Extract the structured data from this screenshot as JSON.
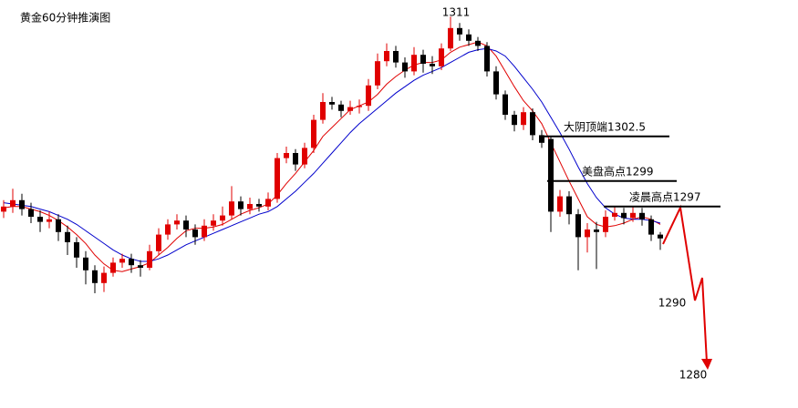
{
  "chart_data": {
    "type": "candlestick",
    "title": "黄金60分钟推演图",
    "ylim": [
      1281.2,
      1313.2
    ],
    "up_color": "#e00000",
    "down_color": "#000000",
    "open": [
      1296.6,
      1297.0,
      1297.5,
      1296.8,
      1296.2,
      1295.8,
      1296.0,
      1295.0,
      1294.2,
      1293.0,
      1292.0,
      1291.0,
      1291.8,
      1292.6,
      1292.9,
      1292.4,
      1292.2,
      1293.5,
      1294.8,
      1295.6,
      1295.9,
      1295.2,
      1294.6,
      1295.5,
      1295.9,
      1296.3,
      1297.4,
      1296.8,
      1297.2,
      1297.0,
      1297.6,
      1300.8,
      1301.2,
      1300.3,
      1301.6,
      1303.8,
      1305.2,
      1305.0,
      1304.5,
      1304.8,
      1304.9,
      1306.5,
      1308.4,
      1309.2,
      1308.3,
      1307.6,
      1308.9,
      1308.2,
      1308.0,
      1309.4,
      1311.0,
      1310.5,
      1310.0,
      1309.6,
      1307.6,
      1305.8,
      1304.2,
      1303.4,
      1304.4,
      1302.6,
      1302.3,
      1296.6,
      1297.8,
      1296.4,
      1294.6,
      1295.2,
      1295.0,
      1296.2,
      1296.5,
      1296.1,
      1296.5,
      1296.0,
      1294.8
    ],
    "high": [
      1297.5,
      1298.4,
      1298.0,
      1297.3,
      1296.7,
      1296.6,
      1296.4,
      1295.5,
      1294.6,
      1293.5,
      1292.4,
      1292.3,
      1293.0,
      1293.3,
      1293.3,
      1292.8,
      1294.0,
      1295.3,
      1296.0,
      1296.4,
      1296.3,
      1295.6,
      1296.0,
      1296.4,
      1297.0,
      1298.6,
      1297.8,
      1297.7,
      1297.6,
      1298.1,
      1301.2,
      1301.7,
      1301.5,
      1302.0,
      1304.2,
      1305.9,
      1305.6,
      1305.3,
      1305.3,
      1305.4,
      1307.0,
      1309.0,
      1309.8,
      1309.6,
      1308.7,
      1309.5,
      1309.3,
      1308.8,
      1309.8,
      1311.9,
      1311.4,
      1310.9,
      1310.3,
      1309.9,
      1308.0,
      1306.1,
      1304.5,
      1304.8,
      1304.7,
      1303.0,
      1302.5,
      1298.3,
      1298.2,
      1296.8,
      1295.7,
      1295.8,
      1296.7,
      1297.0,
      1296.9,
      1297.0,
      1296.9,
      1296.3,
      1295.0
    ],
    "low": [
      1296.1,
      1296.5,
      1296.3,
      1295.7,
      1295.0,
      1295.3,
      1294.3,
      1293.2,
      1292.2,
      1290.9,
      1290.2,
      1290.3,
      1291.5,
      1292.2,
      1291.8,
      1291.5,
      1292.0,
      1293.2,
      1294.4,
      1295.2,
      1294.6,
      1294.0,
      1294.3,
      1295.1,
      1295.5,
      1296.0,
      1296.3,
      1296.4,
      1296.6,
      1296.7,
      1297.3,
      1300.4,
      1299.8,
      1300.0,
      1301.2,
      1303.5,
      1304.6,
      1304.0,
      1304.2,
      1304.3,
      1304.5,
      1306.2,
      1308.0,
      1307.9,
      1307.1,
      1307.3,
      1307.5,
      1307.4,
      1307.7,
      1309.2,
      1310.0,
      1309.6,
      1309.2,
      1307.2,
      1305.4,
      1303.8,
      1302.9,
      1303.0,
      1302.2,
      1301.6,
      1295.0,
      1296.2,
      1295.6,
      1292.0,
      1293.4,
      1292.1,
      1294.6,
      1295.9,
      1295.6,
      1295.8,
      1295.5,
      1294.3,
      1293.6
    ],
    "close": [
      1297.0,
      1297.5,
      1296.8,
      1296.2,
      1295.8,
      1296.0,
      1295.0,
      1294.2,
      1293.0,
      1292.0,
      1291.0,
      1291.8,
      1292.6,
      1292.9,
      1292.4,
      1292.2,
      1293.5,
      1294.8,
      1295.6,
      1295.9,
      1295.2,
      1294.6,
      1295.5,
      1295.9,
      1296.3,
      1297.4,
      1296.8,
      1297.2,
      1297.0,
      1297.6,
      1300.8,
      1301.2,
      1300.3,
      1301.6,
      1303.8,
      1305.2,
      1305.0,
      1304.5,
      1304.8,
      1304.9,
      1306.5,
      1308.4,
      1309.2,
      1308.3,
      1307.6,
      1308.9,
      1308.2,
      1308.0,
      1309.4,
      1311.0,
      1310.5,
      1310.0,
      1309.6,
      1307.6,
      1305.8,
      1304.2,
      1303.4,
      1304.4,
      1302.6,
      1302.0,
      1296.6,
      1297.8,
      1296.4,
      1294.6,
      1295.2,
      1295.0,
      1296.2,
      1296.5,
      1296.1,
      1296.5,
      1296.0,
      1294.8,
      1294.5
    ],
    "lines": [
      {
        "color": "#e00000",
        "values": [
          1296.9,
          1297.0,
          1297.0,
          1296.8,
          1296.6,
          1296.3,
          1295.9,
          1295.4,
          1294.8,
          1294.1,
          1293.2,
          1292.5,
          1292.0,
          1291.9,
          1292.1,
          1292.3,
          1292.6,
          1293.2,
          1293.8,
          1294.5,
          1295.1,
          1295.3,
          1295.3,
          1295.4,
          1295.6,
          1296.0,
          1296.4,
          1296.7,
          1296.9,
          1297.2,
          1297.9,
          1298.8,
          1299.6,
          1300.5,
          1301.4,
          1302.5,
          1303.2,
          1303.9,
          1304.6,
          1304.9,
          1305.2,
          1305.8,
          1306.6,
          1307.2,
          1307.7,
          1308.1,
          1308.3,
          1308.3,
          1308.5,
          1309.1,
          1309.5,
          1309.7,
          1309.9,
          1309.6,
          1308.8,
          1307.6,
          1306.4,
          1305.3,
          1304.5,
          1303.5,
          1302.0,
          1300.5,
          1299.0,
          1297.6,
          1296.2,
          1295.6,
          1295.4,
          1295.5,
          1295.7,
          1296.0,
          1296.2,
          1296.0,
          1295.6
        ]
      },
      {
        "color": "#0000cc",
        "values": [
          1297.3,
          1297.2,
          1297.1,
          1297.0,
          1296.8,
          1296.6,
          1296.3,
          1296.0,
          1295.6,
          1295.1,
          1294.6,
          1294.1,
          1293.6,
          1293.2,
          1292.9,
          1292.7,
          1292.7,
          1292.9,
          1293.2,
          1293.6,
          1294.0,
          1294.3,
          1294.6,
          1294.9,
          1295.2,
          1295.5,
          1295.8,
          1296.1,
          1296.4,
          1296.6,
          1297.0,
          1297.6,
          1298.2,
          1298.9,
          1299.6,
          1300.4,
          1301.2,
          1302.0,
          1302.8,
          1303.5,
          1304.1,
          1304.7,
          1305.3,
          1305.9,
          1306.4,
          1306.9,
          1307.3,
          1307.6,
          1307.9,
          1308.3,
          1308.7,
          1309.1,
          1309.3,
          1309.4,
          1309.2,
          1308.8,
          1308.0,
          1307.1,
          1306.2,
          1305.2,
          1304.0,
          1302.8,
          1301.5,
          1300.1,
          1298.8,
          1297.7,
          1296.9,
          1296.4,
          1296.1,
          1296.0,
          1296.0,
          1295.9,
          1295.7
        ]
      }
    ],
    "peak": {
      "text": "1311",
      "value": 1311
    },
    "levels": [
      {
        "text": "大阴顶端1302.5",
        "value": 1302.5
      },
      {
        "text": "美盘高点1299",
        "value": 1299
      },
      {
        "text": "凌晨高点1297",
        "value": 1297
      }
    ],
    "targets": [
      1290,
      1280
    ]
  }
}
